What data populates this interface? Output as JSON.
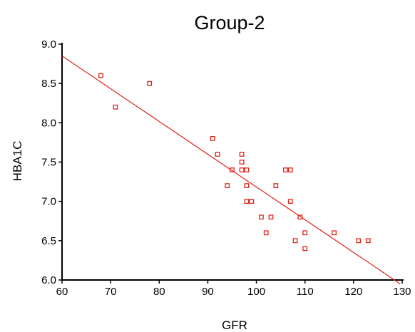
{
  "chart_data": {
    "type": "scatter",
    "title": "Group-2",
    "xlabel": "GFR",
    "ylabel": "HBA1C",
    "xlim": [
      60,
      130
    ],
    "ylim": [
      6.0,
      9.0
    ],
    "x_ticks": [
      "60",
      "70",
      "80",
      "90",
      "100",
      "110",
      "120",
      "130"
    ],
    "y_ticks": [
      "6.0",
      "6.5",
      "7.0",
      "7.5",
      "8.0",
      "8.5",
      "9.0"
    ],
    "grid": false,
    "marker": "open-square",
    "color": "#e2231a",
    "points": [
      {
        "x": 68,
        "y": 8.6
      },
      {
        "x": 71,
        "y": 8.2
      },
      {
        "x": 78,
        "y": 8.5
      },
      {
        "x": 91,
        "y": 7.8
      },
      {
        "x": 92,
        "y": 7.6
      },
      {
        "x": 94,
        "y": 7.2
      },
      {
        "x": 95,
        "y": 7.4
      },
      {
        "x": 97,
        "y": 7.6
      },
      {
        "x": 97,
        "y": 7.5
      },
      {
        "x": 97,
        "y": 7.4
      },
      {
        "x": 98,
        "y": 7.4
      },
      {
        "x": 98,
        "y": 7.2
      },
      {
        "x": 98,
        "y": 7.0
      },
      {
        "x": 99,
        "y": 7.0
      },
      {
        "x": 101,
        "y": 6.8
      },
      {
        "x": 102,
        "y": 6.6
      },
      {
        "x": 103,
        "y": 6.8
      },
      {
        "x": 104,
        "y": 7.2
      },
      {
        "x": 106,
        "y": 7.4
      },
      {
        "x": 107,
        "y": 7.4
      },
      {
        "x": 107,
        "y": 7.0
      },
      {
        "x": 108,
        "y": 6.5
      },
      {
        "x": 109,
        "y": 6.8
      },
      {
        "x": 110,
        "y": 6.6
      },
      {
        "x": 110,
        "y": 6.4
      },
      {
        "x": 116,
        "y": 6.6
      },
      {
        "x": 121,
        "y": 6.5
      },
      {
        "x": 123,
        "y": 6.5
      }
    ],
    "fit_line": {
      "color": "#e2231a",
      "start": {
        "x": 60,
        "y": 8.85
      },
      "end": {
        "x": 129.6,
        "y": 5.95
      }
    }
  }
}
